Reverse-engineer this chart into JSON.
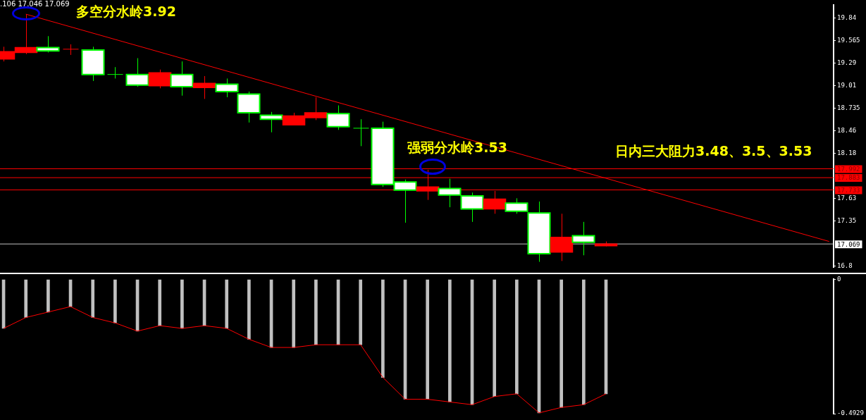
{
  "chart_data": [
    {
      "type": "candlestick",
      "categories": [
        null,
        null,
        null,
        null,
        null,
        null,
        null,
        null,
        null,
        null,
        null,
        null,
        null,
        null,
        null,
        null,
        null,
        null,
        null,
        null,
        null,
        null,
        null,
        null,
        null,
        null,
        null,
        null,
        null,
        null,
        null,
        null,
        null,
        null,
        null,
        null,
        null,
        null
      ],
      "ohlc": [
        [
          19.34,
          19.49,
          19.31,
          19.43
        ],
        [
          19.42,
          19.89,
          19.4,
          19.48
        ],
        [
          19.48,
          19.62,
          19.42,
          19.44
        ],
        [
          19.46,
          19.52,
          19.39,
          19.46
        ],
        [
          19.45,
          19.49,
          19.07,
          19.15
        ],
        [
          19.15,
          19.24,
          19.1,
          19.15
        ],
        [
          19.15,
          19.35,
          19.0,
          19.02
        ],
        [
          19.01,
          19.21,
          18.98,
          19.17
        ],
        [
          19.15,
          19.31,
          18.89,
          19.0
        ],
        [
          18.99,
          19.13,
          18.85,
          19.04
        ],
        [
          19.03,
          19.1,
          18.87,
          18.94
        ],
        [
          18.91,
          18.94,
          18.56,
          18.68
        ],
        [
          18.65,
          18.69,
          18.44,
          18.6
        ],
        [
          18.53,
          18.68,
          18.53,
          18.64
        ],
        [
          18.62,
          18.87,
          18.59,
          18.68
        ],
        [
          18.67,
          18.77,
          18.47,
          18.51
        ],
        [
          18.49,
          18.6,
          18.27,
          18.49
        ],
        [
          18.49,
          18.57,
          17.77,
          17.8
        ],
        [
          17.83,
          17.86,
          17.33,
          17.73
        ],
        [
          17.72,
          17.98,
          17.61,
          17.77
        ],
        [
          17.75,
          17.87,
          17.52,
          17.67
        ],
        [
          17.66,
          17.7,
          17.34,
          17.5
        ],
        [
          17.5,
          17.72,
          17.44,
          17.62
        ],
        [
          17.57,
          17.63,
          17.44,
          17.47
        ],
        [
          17.45,
          17.59,
          16.85,
          16.95
        ],
        [
          16.97,
          17.44,
          16.86,
          17.15
        ],
        [
          17.17,
          17.34,
          16.93,
          17.09
        ],
        [
          17.046,
          17.1,
          17.04,
          17.069
        ],
        null,
        null,
        null,
        null,
        null,
        null,
        null,
        null,
        null,
        null
      ],
      "colors": [
        "#ff0000",
        "#ff0000",
        "#ffffff",
        "#ff0000",
        "#ffffff",
        "#00ff00",
        "#ffffff",
        "#ff0000",
        "#ffffff",
        "#ff0000",
        "#ffffff",
        "#ffffff",
        "#ffffff",
        "#ff0000",
        "#ff0000",
        "#ffffff",
        "#00ff00",
        "#ffffff",
        "#ffffff",
        "#ff0000",
        "#ffffff",
        "#ffffff",
        "#ff0000",
        "#ffffff",
        "#ffffff",
        "#ff0000",
        "#ffffff",
        "#ff0000",
        null,
        null,
        null,
        null,
        null,
        null,
        null,
        null,
        null,
        null
      ],
      "series": [
        {
          "type": "line",
          "color": "#ff0000",
          "values": [
            null,
            19.89,
            null,
            null,
            null,
            null,
            null,
            null,
            null,
            null,
            null,
            null,
            null,
            null,
            null,
            null,
            null,
            null,
            null,
            null,
            null,
            null,
            null,
            null,
            null,
            null,
            null,
            null,
            null,
            null,
            null,
            null,
            null,
            null,
            null,
            null,
            null,
            17.1
          ]
        }
      ],
      "ylim": [
        16.78,
        20.0
      ],
      "yticks": [
        19.84,
        19.565,
        19.29,
        19.01,
        18.735,
        18.46,
        18.18,
        17.63,
        17.35,
        16.8
      ],
      "ref_lines": [
        {
          "axis": "y",
          "value": 17.992,
          "label": "17.992",
          "color": "#ff0000"
        },
        {
          "axis": "y",
          "value": 17.883,
          "label": "17.883",
          "color": "#ff0000"
        },
        {
          "axis": "y",
          "value": 17.733,
          "label": "17.733",
          "color": "#ff0000"
        },
        {
          "axis": "y",
          "value": 17.069,
          "label": "17.069",
          "color": "#c0c0c0"
        }
      ],
      "annotations": [
        ".106 17.046 17.069",
        "多空分水岭3.92",
        "强弱分水岭3.53",
        "日内三大阻力3.48、3.5、3.53"
      ],
      "tick_labels": "y"
    },
    {
      "type": "bar",
      "categories": [
        null,
        null,
        null,
        null,
        null,
        null,
        null,
        null,
        null,
        null,
        null,
        null,
        null,
        null,
        null,
        null,
        null,
        null,
        null,
        null,
        null,
        null,
        null,
        null,
        null,
        null,
        null,
        null,
        null,
        null,
        null,
        null,
        null,
        null,
        null,
        null,
        null,
        null
      ],
      "series": [
        {
          "type": "bar",
          "color": "#c0c0c0",
          "values": [
            -0.18,
            -0.14,
            -0.12,
            -0.1,
            -0.14,
            -0.16,
            -0.19,
            -0.17,
            -0.18,
            -0.17,
            -0.18,
            -0.22,
            -0.25,
            -0.25,
            -0.24,
            -0.24,
            -0.24,
            -0.36,
            -0.44,
            -0.44,
            -0.45,
            -0.46,
            -0.43,
            -0.42,
            -0.49,
            -0.47,
            -0.46,
            -0.42,
            null,
            null,
            null,
            null,
            null,
            null,
            null,
            null,
            null,
            null
          ]
        },
        {
          "type": "line",
          "color": "#ff0000",
          "values": [
            -0.18,
            -0.14,
            -0.12,
            -0.1,
            -0.14,
            -0.16,
            -0.19,
            -0.17,
            -0.18,
            -0.17,
            -0.18,
            -0.22,
            -0.25,
            -0.25,
            -0.24,
            -0.24,
            -0.24,
            -0.36,
            -0.44,
            -0.44,
            -0.45,
            -0.46,
            -0.43,
            -0.42,
            -0.49,
            -0.47,
            -0.46,
            -0.42,
            null,
            null,
            null,
            null,
            null,
            null,
            null,
            null,
            null,
            null
          ]
        }
      ],
      "ylim": [
        -0.4929,
        0
      ],
      "yticks": [
        0,
        -0.4929
      ],
      "tick_labels": "y"
    }
  ]
}
